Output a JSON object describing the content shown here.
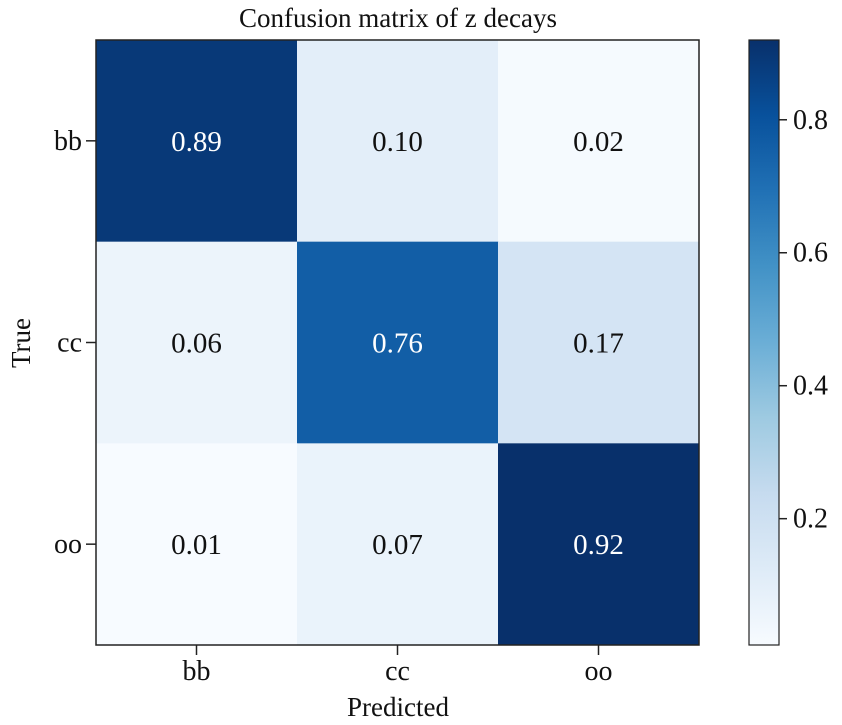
{
  "chart_data": {
    "type": "heatmap",
    "title": "Confusion matrix of z decays",
    "xlabel": "Predicted",
    "ylabel": "True",
    "x_categories": [
      "bb",
      "cc",
      "oo"
    ],
    "y_categories": [
      "bb",
      "cc",
      "oo"
    ],
    "values": [
      [
        0.89,
        0.1,
        0.02
      ],
      [
        0.06,
        0.76,
        0.17
      ],
      [
        0.01,
        0.07,
        0.92
      ]
    ],
    "value_labels": [
      [
        "0.89",
        "0.10",
        "0.02"
      ],
      [
        "0.06",
        "0.76",
        "0.17"
      ],
      [
        "0.01",
        "0.07",
        "0.92"
      ]
    ],
    "colormap": "Blues",
    "colorbar": {
      "range": [
        0.01,
        0.92
      ],
      "ticks": [
        0.2,
        0.4,
        0.6,
        0.8
      ],
      "tick_labels": [
        "0.2",
        "0.4",
        "0.6",
        "0.8"
      ]
    },
    "grid": false
  }
}
